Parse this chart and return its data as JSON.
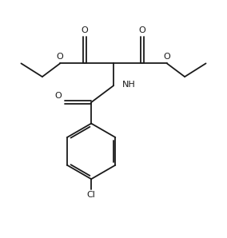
{
  "bg_color": "#ffffff",
  "line_color": "#1a1a1a",
  "line_width": 1.3,
  "font_size": 8.0,
  "fig_width": 2.84,
  "fig_height": 2.98,
  "dpi": 100,
  "xlim": [
    0,
    10
  ],
  "ylim": [
    0,
    10
  ]
}
